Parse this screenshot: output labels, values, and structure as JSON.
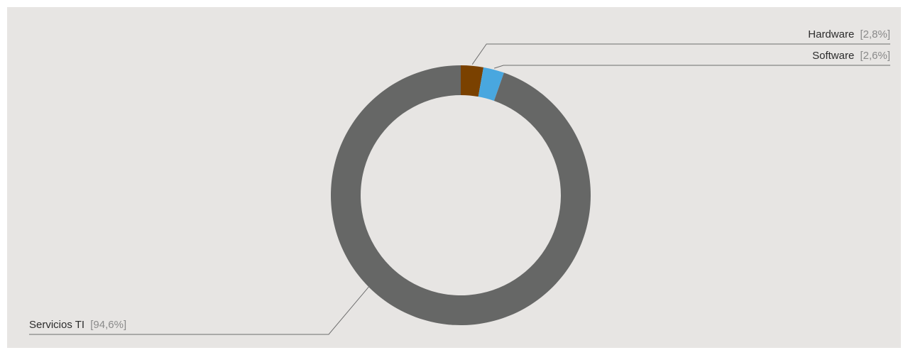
{
  "chart_data": {
    "type": "pie",
    "donut": true,
    "title": "",
    "slices": [
      {
        "label": "Hardware",
        "value": 2.8,
        "value_label": "[2,8%]",
        "color": "#7a4100"
      },
      {
        "label": "Software",
        "value": 2.6,
        "value_label": "[2,6%]",
        "color": "#49a7df"
      },
      {
        "label": "Servicios TI",
        "value": 94.6,
        "value_label": "[94,6%]",
        "color": "#666766"
      }
    ],
    "background": "#e7e5e3",
    "leader_color": "#6e6e6e"
  }
}
